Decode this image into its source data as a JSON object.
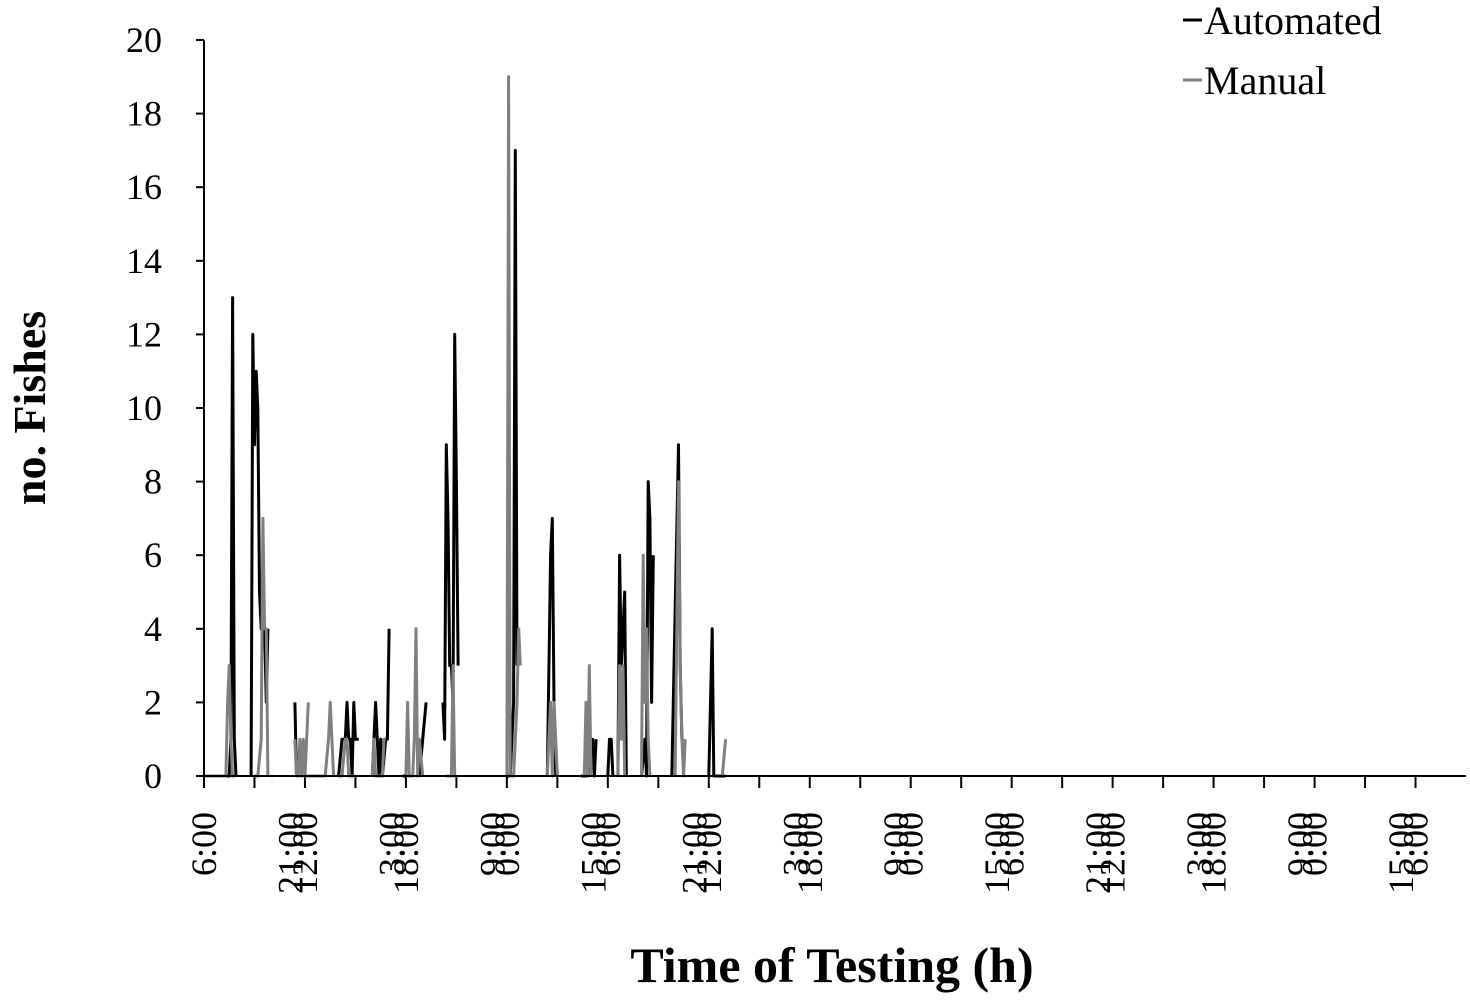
{
  "chart_data": {
    "type": "line",
    "title": "",
    "xlabel": "Time of Testing (h)",
    "ylabel": "no. Fishes",
    "ylim": [
      0,
      20
    ],
    "yticks": [
      0,
      2,
      4,
      6,
      8,
      10,
      12,
      14,
      16,
      18,
      20
    ],
    "x_tick_labels": [
      "6:00",
      "21:00",
      "12:00",
      "3:00",
      "18:00",
      "9:00",
      "0:00",
      "15:00",
      "6:00",
      "21:00",
      "12:00",
      "3:00",
      "18:00",
      "9:00",
      "0:00",
      "15:00",
      "6:00",
      "21:00",
      "12:00",
      "3:00",
      "18:00",
      "9:00",
      "0:00",
      "15:00",
      "6:00"
    ],
    "x_unit_hours": 15,
    "legend_position": "top-right",
    "grid": false,
    "colors": {
      "Automated": "#000000",
      "Manual": "#808080"
    },
    "series": [
      {
        "name": "Automated",
        "segments": [
          [
            [
              0,
              0
            ],
            [
              7.5,
              0
            ],
            [
              8,
              1
            ],
            [
              8.5,
              13
            ],
            [
              9,
              1
            ],
            [
              9.5,
              0
            ]
          ],
          [
            [
              14,
              0
            ],
            [
              14.5,
              12
            ],
            [
              15,
              9
            ],
            [
              15.5,
              11
            ],
            [
              16,
              10
            ],
            [
              16.5,
              5
            ],
            [
              17,
              4
            ],
            [
              17.5,
              4
            ],
            [
              18,
              4
            ],
            [
              18.5,
              2
            ],
            [
              19,
              4
            ]
          ],
          [
            [
              27,
              2
            ],
            [
              27.5,
              0
            ]
          ],
          [
            [
              33,
              0
            ],
            [
              34,
              0
            ]
          ],
          [
            [
              40,
              0
            ],
            [
              41,
              1
            ],
            [
              42,
              1
            ],
            [
              42.5,
              2
            ],
            [
              43,
              1
            ],
            [
              43.5,
              1
            ],
            [
              44,
              0
            ],
            [
              44.5,
              2
            ],
            [
              45,
              1
            ],
            [
              46,
              1
            ]
          ],
          [
            [
              50,
              0
            ],
            [
              51,
              2
            ],
            [
              51.5,
              1
            ],
            [
              52,
              0
            ],
            [
              52.5,
              1
            ],
            [
              53,
              0
            ],
            [
              54,
              1
            ],
            [
              54.5,
              1
            ],
            [
              55,
              4
            ]
          ],
          [
            [
              59,
              0
            ],
            [
              60,
              0
            ]
          ],
          [
            [
              64,
              0
            ],
            [
              65,
              1
            ],
            [
              66,
              2
            ]
          ],
          [
            [
              71,
              2
            ],
            [
              71.5,
              1
            ],
            [
              72,
              9
            ],
            [
              72.5,
              7
            ],
            [
              73,
              3
            ],
            [
              73.5,
              3
            ],
            [
              74,
              2
            ],
            [
              74.5,
              12
            ],
            [
              75,
              8
            ],
            [
              75.5,
              3
            ]
          ],
          [
            [
              90,
              0
            ],
            [
              91,
              0
            ],
            [
              91.5,
              1
            ],
            [
              92,
              2
            ],
            [
              92.5,
              17
            ],
            [
              93,
              3
            ]
          ],
          [
            [
              102,
              0
            ],
            [
              103,
              6
            ],
            [
              103.5,
              7
            ],
            [
              104,
              2
            ],
            [
              104.5,
              0
            ]
          ],
          [
            [
              112,
              0
            ],
            [
              114,
              0
            ],
            [
              115,
              1
            ],
            [
              115.5,
              1
            ],
            [
              116,
              0
            ],
            [
              116.5,
              1
            ]
          ],
          [
            [
              120,
              0
            ],
            [
              120.5,
              1
            ],
            [
              121,
              1
            ],
            [
              121.5,
              0
            ]
          ],
          [
            [
              123,
              0
            ],
            [
              123.5,
              6
            ],
            [
              124,
              3
            ],
            [
              124.5,
              4
            ],
            [
              125,
              5
            ],
            [
              125.5,
              0
            ]
          ],
          [
            [
              130,
              0
            ],
            [
              131,
              1
            ],
            [
              131.5,
              0
            ],
            [
              132,
              8
            ],
            [
              132.5,
              7
            ],
            [
              133,
              2
            ],
            [
              133.5,
              6
            ]
          ],
          [
            [
              139,
              0
            ],
            [
              141,
              9
            ],
            [
              141.5,
              3
            ],
            [
              142,
              1
            ],
            [
              142.5,
              1
            ]
          ],
          [
            [
              150,
              0
            ],
            [
              151,
              4
            ],
            [
              151.5,
              0
            ],
            [
              155,
              0
            ]
          ]
        ]
      },
      {
        "name": "Manual",
        "segments": [
          [
            [
              0,
              0
            ],
            [
              6.5,
              0
            ],
            [
              7,
              2
            ],
            [
              7.5,
              3
            ],
            [
              8,
              1
            ],
            [
              8.5,
              0
            ],
            [
              9,
              0
            ]
          ],
          [
            [
              15,
              0
            ],
            [
              16,
              0
            ],
            [
              17,
              1
            ],
            [
              17.5,
              7
            ],
            [
              18,
              4
            ],
            [
              18.5,
              4
            ],
            [
              19,
              0
            ]
          ],
          [
            [
              20,
              0
            ],
            [
              20.5,
              0
            ]
          ],
          [
            [
              27,
              1
            ],
            [
              27.5,
              0
            ],
            [
              28,
              0
            ],
            [
              28.5,
              1
            ],
            [
              29,
              0
            ],
            [
              29.5,
              1
            ],
            [
              30,
              0
            ],
            [
              31,
              2
            ]
          ],
          [
            [
              30,
              0
            ],
            [
              36,
              0
            ],
            [
              37,
              1
            ],
            [
              37.5,
              2
            ],
            [
              38,
              1
            ],
            [
              38.5,
              0
            ]
          ],
          [
            [
              40,
              0
            ],
            [
              41,
              0
            ],
            [
              42,
              1
            ],
            [
              42.5,
              1
            ],
            [
              43,
              0
            ],
            [
              43.5,
              0
            ],
            [
              45,
              0
            ]
          ],
          [
            [
              50,
              0
            ],
            [
              50.5,
              1
            ],
            [
              51,
              0
            ],
            [
              52,
              0
            ],
            [
              53,
              0
            ],
            [
              53.5,
              1
            ],
            [
              54,
              1
            ]
          ],
          [
            [
              60,
              0
            ],
            [
              60.5,
              2
            ],
            [
              61,
              0
            ],
            [
              62,
              0
            ],
            [
              62.5,
              1
            ],
            [
              63,
              4
            ],
            [
              63.5,
              0
            ],
            [
              64,
              1
            ],
            [
              65,
              0
            ]
          ],
          [
            [
              72,
              0
            ],
            [
              73.5,
              0
            ],
            [
              74,
              3
            ],
            [
              74.5,
              0
            ],
            [
              75,
              0
            ]
          ],
          [
            [
              90,
              0
            ],
            [
              90.5,
              19
            ],
            [
              91,
              0
            ],
            [
              92,
              0
            ],
            [
              92.5,
              1
            ],
            [
              93,
              2
            ],
            [
              93.5,
              4
            ],
            [
              94,
              3
            ]
          ],
          [
            [
              102,
              0
            ],
            [
              102.5,
              1
            ],
            [
              103,
              2
            ],
            [
              103.5,
              0
            ],
            [
              104,
              2
            ],
            [
              104.5,
              1
            ],
            [
              105,
              0
            ]
          ],
          [
            [
              113,
              0
            ],
            [
              113.5,
              2
            ],
            [
              114,
              0
            ],
            [
              114.5,
              3
            ],
            [
              115,
              0
            ]
          ],
          [
            [
              123,
              0
            ],
            [
              123.5,
              3
            ],
            [
              124,
              1
            ],
            [
              124.5,
              3
            ],
            [
              125,
              0
            ]
          ],
          [
            [
              130,
              0
            ],
            [
              130.5,
              6
            ],
            [
              131,
              2
            ],
            [
              131.5,
              4
            ],
            [
              132,
              1
            ],
            [
              132.5,
              0
            ]
          ],
          [
            [
              140,
              0
            ],
            [
              141,
              8
            ],
            [
              141.5,
              3
            ],
            [
              142,
              1
            ],
            [
              142.5,
              0
            ],
            [
              143,
              1
            ]
          ],
          [
            [
              154,
              0
            ],
            [
              155,
              1
            ]
          ]
        ]
      }
    ]
  }
}
